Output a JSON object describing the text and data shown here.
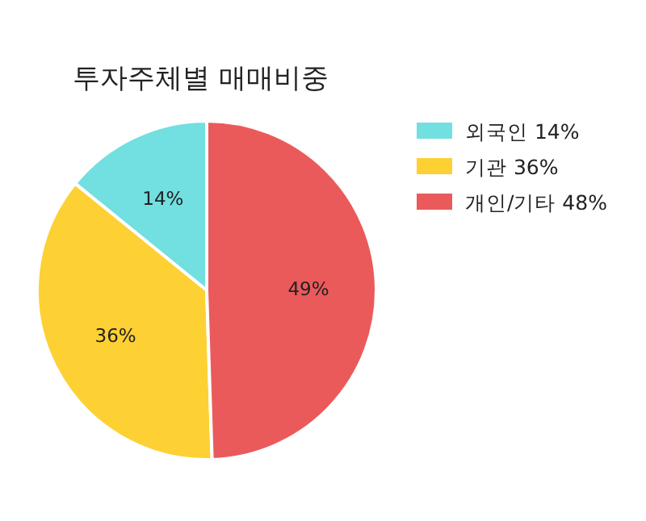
{
  "chart_data": {
    "type": "pie",
    "title": "투자주체별 매매비중",
    "categories": [
      "외국인 14%",
      "기관 36%",
      "개인/기타 48%"
    ],
    "values": [
      14,
      36,
      49
    ],
    "colors": [
      "#72dfe0",
      "#fdd033",
      "#ea5a5b"
    ],
    "value_labels": [
      "14%",
      "36%",
      "49%"
    ],
    "legend": "top right"
  }
}
